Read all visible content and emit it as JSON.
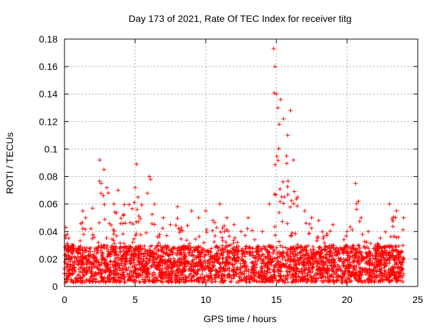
{
  "chart_data": {
    "type": "scatter",
    "title": "Day 173 of 2021, Rate Of TEC Index for receiver titg",
    "xlabel": "GPS time / hours",
    "ylabel": "ROTI / TECUs",
    "xlim": [
      0,
      25
    ],
    "ylim": [
      0,
      0.18
    ],
    "xticks": [
      0,
      5,
      10,
      15,
      20,
      25
    ],
    "xtick_labels": [
      "0",
      "5",
      "10",
      "15",
      "20",
      "25"
    ],
    "yticks": [
      0,
      0.02,
      0.04,
      0.06,
      0.08,
      0.1,
      0.12,
      0.14,
      0.16,
      0.18
    ],
    "ytick_labels": [
      "0",
      "0.02",
      "0.04",
      "0.06",
      "0.08",
      "0.1",
      "0.12",
      "0.14",
      "0.16",
      "0.18"
    ],
    "grid": true,
    "marker": "plus",
    "color": "#ff0000",
    "series": [
      {
        "name": "ROTI",
        "description_of_density": "dense band 0.003-0.03 across 0-24 h with peaks",
        "x": [
          0.1,
          0.2,
          0.3,
          0.5,
          1.3,
          1.5,
          2.5,
          2.6,
          2.8,
          3.0,
          3.1,
          3.5,
          3.8,
          5.0,
          5.1,
          5.2,
          6.0,
          6.1,
          7.0,
          7.5,
          8.0,
          9.0,
          9.5,
          10.0,
          10.5,
          11.0,
          11.5,
          12.0,
          12.5,
          13.0,
          14.0,
          14.5,
          14.8,
          14.9,
          15.0,
          15.1,
          15.2,
          15.3,
          15.5,
          15.8,
          16.0,
          16.2,
          16.5,
          17.0,
          17.5,
          18.0,
          19.0,
          20.0,
          20.6,
          20.8,
          21.0,
          21.5,
          22.0,
          23.0,
          23.5,
          24.0
        ],
        "y": [
          0.043,
          0.038,
          0.035,
          0.03,
          0.055,
          0.05,
          0.092,
          0.075,
          0.085,
          0.072,
          0.068,
          0.06,
          0.07,
          0.072,
          0.089,
          0.065,
          0.08,
          0.078,
          0.05,
          0.045,
          0.058,
          0.055,
          0.05,
          0.055,
          0.048,
          0.06,
          0.05,
          0.045,
          0.04,
          0.05,
          0.04,
          0.06,
          0.173,
          0.16,
          0.14,
          0.13,
          0.118,
          0.136,
          0.122,
          0.11,
          0.128,
          0.092,
          0.065,
          0.055,
          0.05,
          0.048,
          0.045,
          0.04,
          0.075,
          0.062,
          0.05,
          0.04,
          0.03,
          0.06,
          0.055,
          0.05
        ]
      }
    ]
  }
}
